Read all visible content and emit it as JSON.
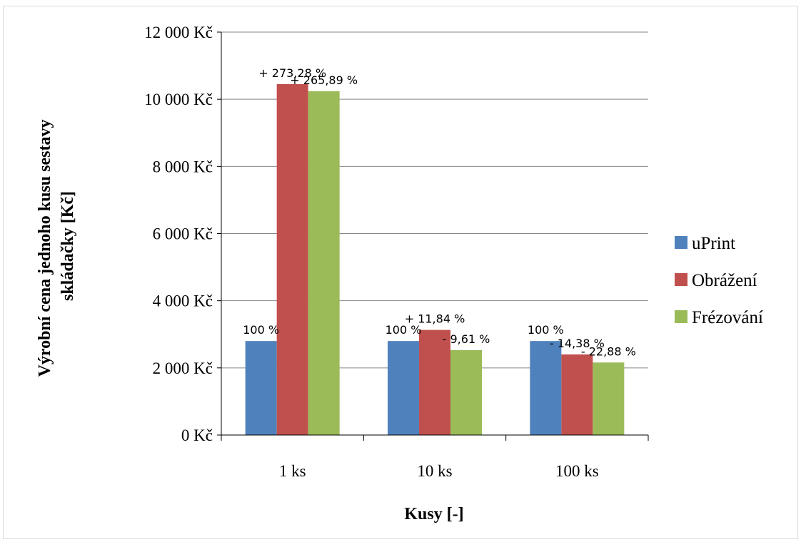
{
  "chart_data": {
    "type": "bar",
    "title": "",
    "xlabel": "Kusy [-]",
    "ylabel_line1": "Výrobní cena jednoho kusu sestavy",
    "ylabel_line2": "skládačky [Kč]",
    "ylim": [
      0,
      12000
    ],
    "yticks": [
      0,
      2000,
      4000,
      6000,
      8000,
      10000,
      12000
    ],
    "ytick_labels": [
      "0 Kč",
      "2 000 Kč",
      "4 000 Kč",
      "6 000 Kč",
      "8 000 Kč",
      "10 000 Kč",
      "12 000 Kč"
    ],
    "categories": [
      "1 ks",
      "10 ks",
      "100 ks"
    ],
    "grid": true,
    "legend_position": "right",
    "series": [
      {
        "name": "uPrint",
        "color": "#4F81BD",
        "values": [
          2800,
          2800,
          2800
        ],
        "labels": [
          "100 %",
          "100 %",
          "100 %"
        ]
      },
      {
        "name": "Obrážení",
        "color": "#C0504D",
        "values": [
          10450,
          3130,
          2400
        ],
        "labels": [
          "+ 273,28 %",
          "+ 11,84 %",
          "- 14,38 %"
        ]
      },
      {
        "name": "Frézování",
        "color": "#9BBB59",
        "values": [
          10240,
          2530,
          2160
        ],
        "labels": [
          "+ 265,89 %",
          "- 9,61 %",
          "- 22,88 %"
        ]
      }
    ]
  }
}
